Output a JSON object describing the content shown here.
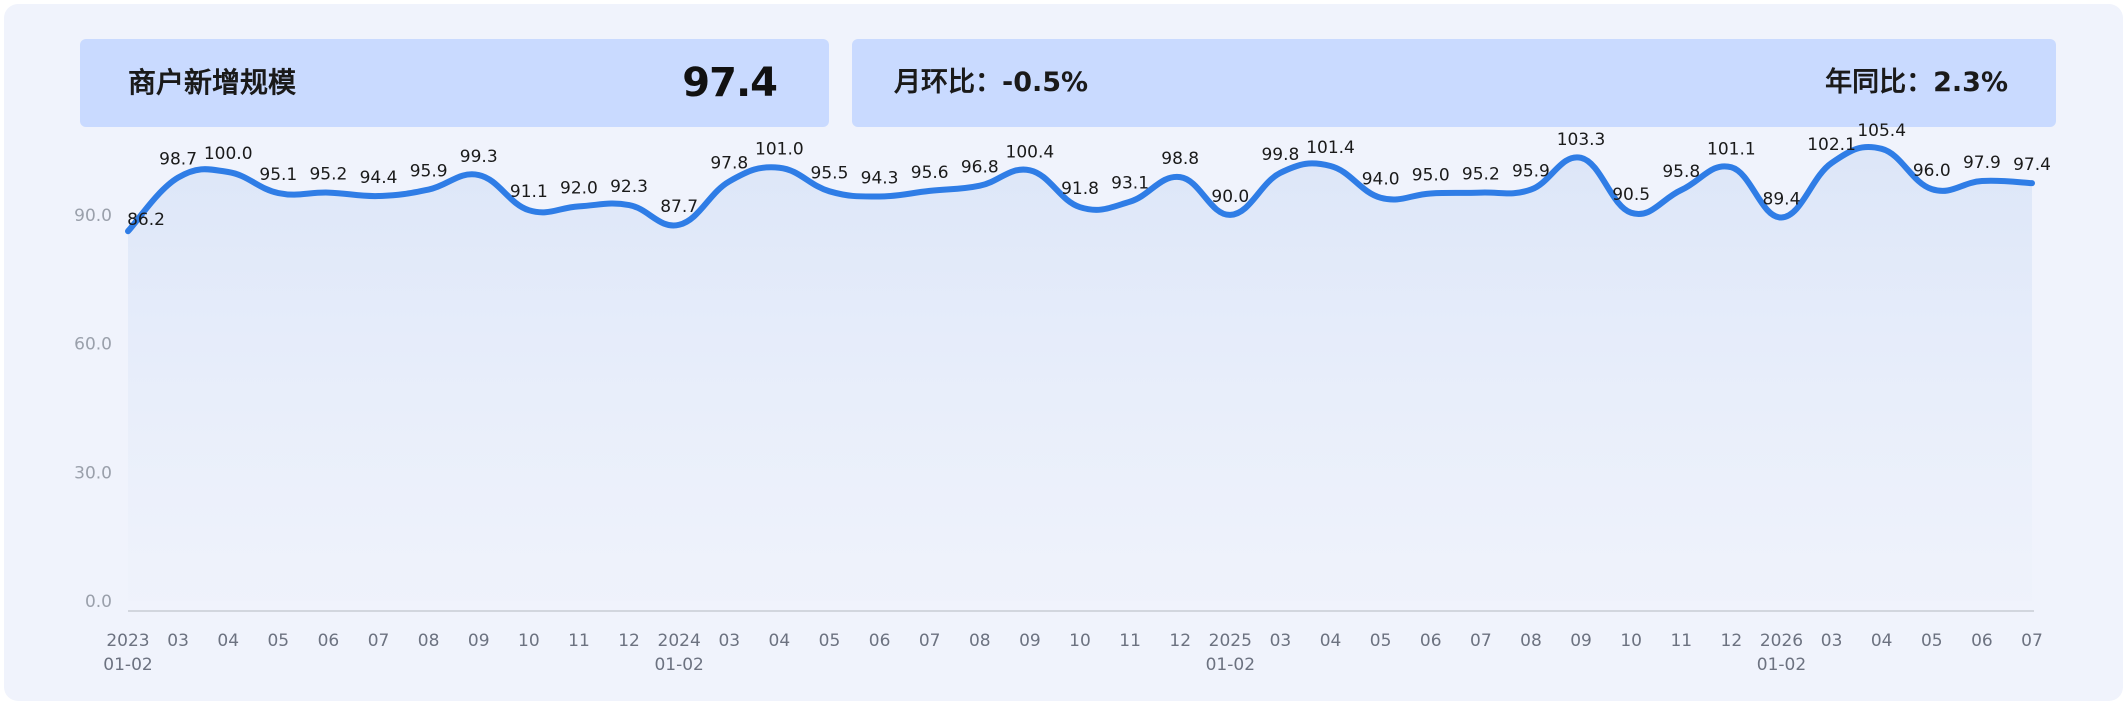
{
  "kpi": {
    "title": "商户新增规模",
    "value": "97.4",
    "mom_label": "月环比：",
    "mom_value": "-0.5%",
    "yoy_label": "年同比：",
    "yoy_value": "2.3%"
  },
  "colors": {
    "line": "#2f7de6",
    "card": "#c9daff",
    "background": "#f0f3fc"
  },
  "chart_data": {
    "type": "area",
    "title": "",
    "xlabel": "",
    "ylabel": "",
    "ylim": [
      0,
      110
    ],
    "yticks": [
      "0.0",
      "30.0",
      "60.0",
      "90.0"
    ],
    "ytick_values": [
      0,
      30,
      60,
      90
    ],
    "grid": false,
    "categories": [
      {
        "top": "2023",
        "bottom": "01-02"
      },
      {
        "top": "03",
        "bottom": ""
      },
      {
        "top": "04",
        "bottom": ""
      },
      {
        "top": "05",
        "bottom": ""
      },
      {
        "top": "06",
        "bottom": ""
      },
      {
        "top": "07",
        "bottom": ""
      },
      {
        "top": "08",
        "bottom": ""
      },
      {
        "top": "09",
        "bottom": ""
      },
      {
        "top": "10",
        "bottom": ""
      },
      {
        "top": "11",
        "bottom": ""
      },
      {
        "top": "12",
        "bottom": ""
      },
      {
        "top": "2024",
        "bottom": "01-02"
      },
      {
        "top": "03",
        "bottom": ""
      },
      {
        "top": "04",
        "bottom": ""
      },
      {
        "top": "05",
        "bottom": ""
      },
      {
        "top": "06",
        "bottom": ""
      },
      {
        "top": "07",
        "bottom": ""
      },
      {
        "top": "08",
        "bottom": ""
      },
      {
        "top": "09",
        "bottom": ""
      },
      {
        "top": "10",
        "bottom": ""
      },
      {
        "top": "11",
        "bottom": ""
      },
      {
        "top": "12",
        "bottom": ""
      },
      {
        "top": "2025",
        "bottom": "01-02"
      },
      {
        "top": "03",
        "bottom": ""
      },
      {
        "top": "04",
        "bottom": ""
      },
      {
        "top": "05",
        "bottom": ""
      },
      {
        "top": "06",
        "bottom": ""
      },
      {
        "top": "07",
        "bottom": ""
      },
      {
        "top": "08",
        "bottom": ""
      },
      {
        "top": "09",
        "bottom": ""
      },
      {
        "top": "10",
        "bottom": ""
      },
      {
        "top": "11",
        "bottom": ""
      },
      {
        "top": "12",
        "bottom": ""
      },
      {
        "top": "2026",
        "bottom": "01-02"
      },
      {
        "top": "03",
        "bottom": ""
      },
      {
        "top": "04",
        "bottom": ""
      },
      {
        "top": "05",
        "bottom": ""
      },
      {
        "top": "06",
        "bottom": ""
      },
      {
        "top": "07",
        "bottom": ""
      }
    ],
    "values": [
      86.2,
      98.7,
      100.0,
      95.1,
      95.2,
      94.4,
      95.9,
      99.3,
      91.1,
      92.0,
      92.3,
      87.7,
      97.8,
      101.0,
      95.5,
      94.3,
      95.6,
      96.8,
      100.4,
      91.8,
      93.1,
      98.8,
      90.0,
      99.8,
      101.4,
      94.0,
      95.0,
      95.2,
      95.9,
      103.3,
      90.5,
      95.8,
      101.1,
      89.4,
      102.1,
      105.4,
      96.0,
      97.9,
      97.4
    ],
    "labels": [
      "86.2",
      "98.7",
      "100.0",
      "95.1",
      "95.2",
      "94.4",
      "95.9",
      "99.3",
      "91.1",
      "92.0",
      "92.3",
      "87.7",
      "97.8",
      "101.0",
      "95.5",
      "94.3",
      "95.6",
      "96.8",
      "100.4",
      "91.8",
      "93.1",
      "98.8",
      "90.0",
      "99.8",
      "101.4",
      "94.0",
      "95.0",
      "95.2",
      "95.9",
      "103.3",
      "90.5",
      "95.8",
      "101.1",
      "89.4",
      "102.1",
      "105.4",
      "96.0",
      "97.9",
      "97.4"
    ]
  }
}
